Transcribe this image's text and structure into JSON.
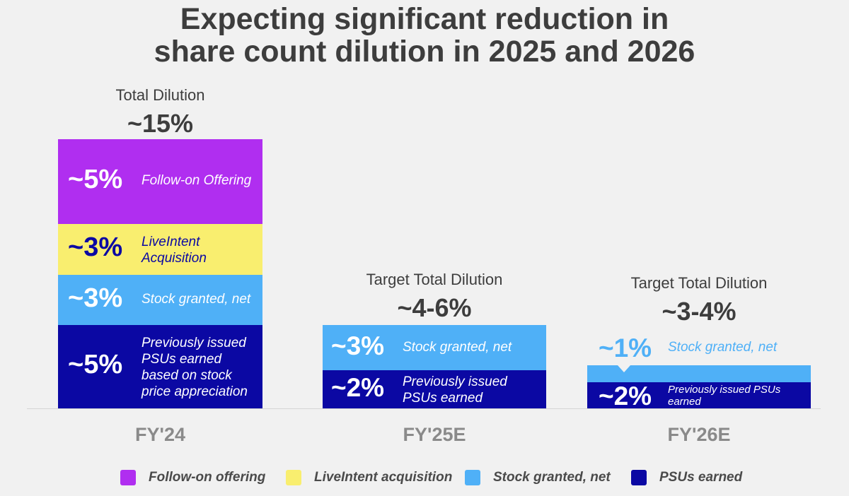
{
  "title": {
    "line1": "Expecting significant reduction in",
    "line2": "share count dilution in 2025 and 2026"
  },
  "colors": {
    "follow_on": "#b02ef0",
    "liveintent": "#f9ee6f",
    "stock_granted": "#4fb0f7",
    "psus": "#0b08a3",
    "background": "#f1f1f1"
  },
  "chart_data": {
    "type": "stacked-bar",
    "title": "Expecting significant reduction in share count dilution in 2025 and 2026",
    "categories": [
      "FY'24",
      "FY'25E",
      "FY'26E"
    ],
    "units": "% dilution",
    "headers": [
      {
        "caption": "Total Dilution",
        "total": "~15%"
      },
      {
        "caption": "Target Total Dilution",
        "total": "~4-6%"
      },
      {
        "caption": "Target Total Dilution",
        "total": "~3-4%"
      }
    ],
    "series": [
      {
        "name": "PSUs earned",
        "key": "psus",
        "values": [
          5,
          2,
          2
        ],
        "value_labels": [
          "~5%",
          "~2%",
          "~2%"
        ],
        "segment_labels": [
          "Previously issued PSUs earned based on stock price appreciation",
          "Previously issued PSUs earned",
          "Previously issued PSUs earned"
        ]
      },
      {
        "name": "Stock granted, net",
        "key": "stock_granted",
        "values": [
          3,
          3,
          1
        ],
        "value_labels": [
          "~3%",
          "~3%",
          "~1%"
        ],
        "segment_labels": [
          "Stock granted, net",
          "Stock granted, net",
          "Stock granted, net"
        ]
      },
      {
        "name": "LiveIntent acquisition",
        "key": "liveintent",
        "values": [
          3,
          0,
          0
        ],
        "value_labels": [
          "~3%",
          "",
          ""
        ],
        "segment_labels": [
          "LiveIntent Acquisition",
          "",
          ""
        ]
      },
      {
        "name": "Follow-on offering",
        "key": "follow_on",
        "values": [
          5,
          0,
          0
        ],
        "value_labels": [
          "~5%",
          "",
          ""
        ],
        "segment_labels": [
          "Follow-on Offering",
          "",
          ""
        ]
      }
    ],
    "legend": [
      "Follow-on offering",
      "LiveIntent acquisition",
      "Stock granted, net",
      "PSUs earned"
    ],
    "legend_position": "bottom"
  }
}
